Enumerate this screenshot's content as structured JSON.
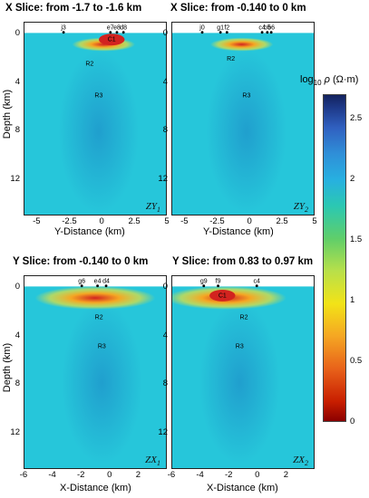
{
  "colors": {
    "background_fill": "#26c6da",
    "conductive": "#d2231f",
    "resistive": "#2b4aa8"
  },
  "chart_data": [
    {
      "type": "heatmap",
      "title": "X Slice: from -1.7 to -1.6 km",
      "xlabel": "Y-Distance (km)",
      "ylabel": "Depth (km)",
      "xlim": [
        -6,
        5
      ],
      "ylim": [
        15,
        -1
      ],
      "xticks": [
        "-5",
        "-2.5",
        "0",
        "2.5",
        "5"
      ],
      "yticks": [
        "0",
        "4",
        "8",
        "12"
      ],
      "corner_label": "ZY1",
      "stations": [
        {
          "name": "j3",
          "x": -3.0
        },
        {
          "name": "e7",
          "x": 0.6
        },
        {
          "name": "e8",
          "x": 1.1
        },
        {
          "name": "d8",
          "x": 1.6
        }
      ],
      "regions": [
        {
          "name": "C1",
          "x": 0.7,
          "depth": 0.4
        },
        {
          "name": "R2",
          "x": -1.0,
          "depth": 2.4
        },
        {
          "name": "R3",
          "x": -0.3,
          "depth": 5.0
        }
      ]
    },
    {
      "type": "heatmap",
      "title": "X Slice: from -0.140 to 0 km",
      "xlabel": "Y-Distance (km)",
      "ylabel": "",
      "xlim": [
        -6,
        5
      ],
      "ylim": [
        15,
        -1
      ],
      "xticks": [
        "-5",
        "-2.5",
        "0",
        "2.5",
        "5"
      ],
      "yticks": [
        "0",
        "4",
        "8",
        "12"
      ],
      "corner_label": "ZY2",
      "stations": [
        {
          "name": "j0",
          "x": -3.7
        },
        {
          "name": "g1",
          "x": -2.3
        },
        {
          "name": "f2",
          "x": -1.8
        },
        {
          "name": "b5",
          "x": 1.3
        },
        {
          "name": "c4",
          "x": 0.9
        },
        {
          "name": "b6",
          "x": 1.6
        }
      ],
      "regions": [
        {
          "name": "R2",
          "x": -1.5,
          "depth": 2.0
        },
        {
          "name": "R3",
          "x": -0.3,
          "depth": 5.0
        }
      ]
    },
    {
      "type": "heatmap",
      "title": "Y Slice: from -0.140 to 0 km",
      "xlabel": "X-Distance (km)",
      "ylabel": "Depth (km)",
      "xlim": [
        -6,
        4
      ],
      "ylim": [
        15,
        -1
      ],
      "xticks": [
        "-6",
        "-4",
        "-2",
        "0",
        "2"
      ],
      "yticks": [
        "0",
        "4",
        "8",
        "12"
      ],
      "corner_label": "ZX1",
      "stations": [
        {
          "name": "g6",
          "x": -2.0
        },
        {
          "name": "e4",
          "x": -0.9
        },
        {
          "name": "d4",
          "x": -0.3
        }
      ],
      "regions": [
        {
          "name": "R2",
          "x": -0.8,
          "depth": 2.4
        },
        {
          "name": "R3",
          "x": -0.6,
          "depth": 4.8
        }
      ]
    },
    {
      "type": "heatmap",
      "title": "Y Slice: from 0.83 to 0.97 km",
      "xlabel": "X-Distance (km)",
      "ylabel": "",
      "xlim": [
        -6,
        4
      ],
      "ylim": [
        15,
        -1
      ],
      "xticks": [
        "-6",
        "-4",
        "-2",
        "0",
        "2"
      ],
      "yticks": [
        "0",
        "4",
        "8",
        "12"
      ],
      "corner_label": "ZX2",
      "stations": [
        {
          "name": "g9",
          "x": -3.8
        },
        {
          "name": "f9",
          "x": -2.8
        },
        {
          "name": "c4",
          "x": -0.1
        }
      ],
      "regions": [
        {
          "name": "C1",
          "x": -2.5,
          "depth": 0.6
        },
        {
          "name": "R2",
          "x": -1.0,
          "depth": 2.4
        },
        {
          "name": "R3",
          "x": -1.3,
          "depth": 4.8
        }
      ]
    }
  ],
  "colorbar": {
    "label": "log10 ρ (Ω·m)",
    "range": [
      0,
      2.7
    ],
    "ticks": [
      "2.5",
      "2",
      "1.5",
      "1",
      "0.5",
      "0"
    ],
    "tick_values": [
      2.5,
      2,
      1.5,
      1,
      0.5,
      0
    ]
  }
}
